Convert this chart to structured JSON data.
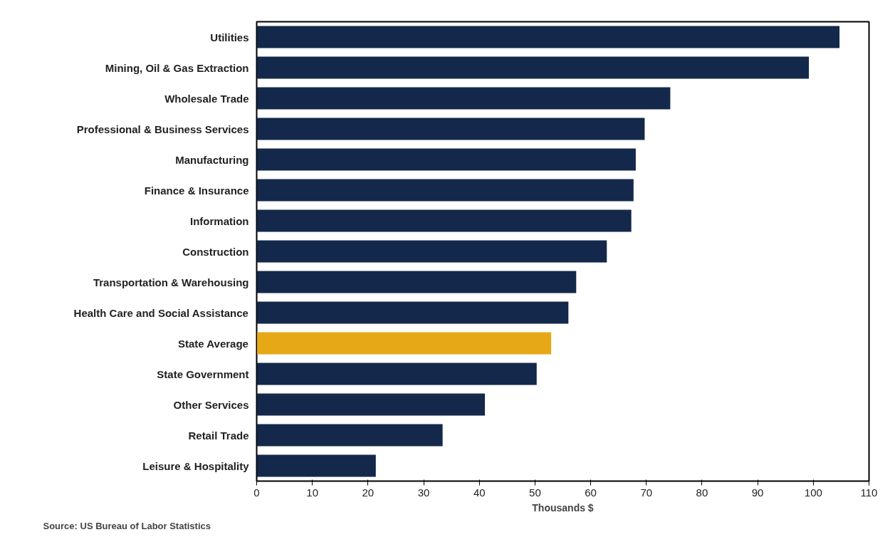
{
  "chart_data": {
    "type": "bar",
    "orientation": "horizontal",
    "xlabel": "Thousands $",
    "categories": [
      "Utilities",
      "Mining, Oil & Gas Extraction",
      "Wholesale Trade",
      "Professional & Business Services",
      "Manufacturing",
      "Finance & Insurance",
      "Information",
      "Construction",
      "Transportation & Warehousing",
      "Health Care and Social Assistance",
      "State Average",
      "State Government",
      "Other Services",
      "Retail Trade",
      "Leisure & Hospitality"
    ],
    "values": [
      104.7,
      99.2,
      74.3,
      69.7,
      68.1,
      67.7,
      67.3,
      62.9,
      57.4,
      56.0,
      52.9,
      50.3,
      41.0,
      33.4,
      21.4
    ],
    "colors": [
      "#14284b",
      "#14284b",
      "#14284b",
      "#14284b",
      "#14284b",
      "#14284b",
      "#14284b",
      "#14284b",
      "#14284b",
      "#14284b",
      "#e6a817",
      "#14284b",
      "#14284b",
      "#14284b",
      "#14284b"
    ],
    "xlim": [
      0,
      110
    ],
    "xticks": [
      0,
      10,
      20,
      30,
      40,
      50,
      60,
      70,
      80,
      90,
      100,
      110
    ],
    "grid": false,
    "annotations": [
      "Source: US Bureau of Labor Statistics"
    ]
  }
}
